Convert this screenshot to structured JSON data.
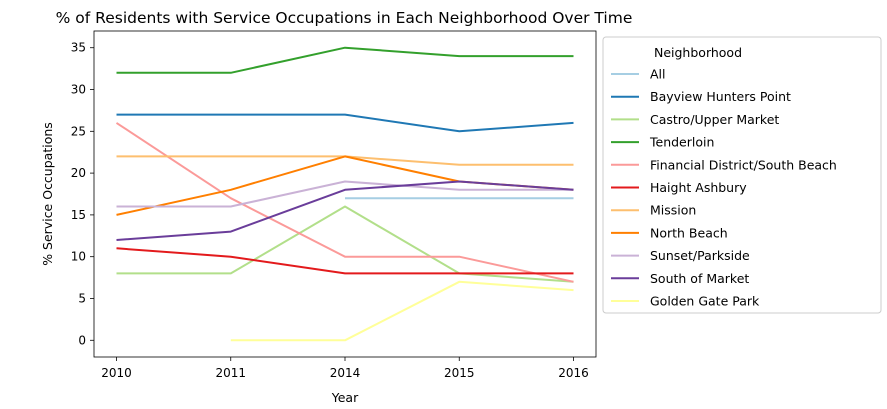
{
  "chart_data": {
    "type": "line",
    "title": "% of Residents with Service Occupations in Each Neighborhood Over Time",
    "xlabel": "Year",
    "ylabel": "% Service Occupations",
    "categories": [
      "2010",
      "2011",
      "2014",
      "2015",
      "2016"
    ],
    "yticks": [
      0,
      5,
      10,
      15,
      20,
      25,
      30,
      35
    ],
    "ylim": [
      -2,
      37
    ],
    "grid": false,
    "legend": {
      "title": "Neighborhood",
      "placement": "right-outside"
    },
    "series": [
      {
        "name": "All",
        "color": "#a6cee3",
        "values": [
          null,
          null,
          17,
          17,
          17
        ]
      },
      {
        "name": "Bayview Hunters Point",
        "color": "#1f78b4",
        "values": [
          27,
          27,
          27,
          25,
          26
        ]
      },
      {
        "name": "Castro/Upper Market",
        "color": "#b2df8a",
        "values": [
          8,
          8,
          16,
          8,
          7
        ]
      },
      {
        "name": "Tenderloin",
        "color": "#33a02c",
        "values": [
          32,
          32,
          35,
          34,
          34
        ]
      },
      {
        "name": "Financial District/South Beach",
        "color": "#fb9a99",
        "values": [
          26,
          17,
          10,
          10,
          7
        ]
      },
      {
        "name": "Haight Ashbury",
        "color": "#e31a1c",
        "values": [
          11,
          10,
          8,
          8,
          8
        ]
      },
      {
        "name": "Mission",
        "color": "#fdbf6f",
        "values": [
          22,
          22,
          22,
          21,
          21
        ]
      },
      {
        "name": "North Beach",
        "color": "#ff7f00",
        "values": [
          15,
          18,
          22,
          19,
          18
        ]
      },
      {
        "name": "Sunset/Parkside",
        "color": "#cab2d6",
        "values": [
          16,
          16,
          19,
          18,
          18
        ]
      },
      {
        "name": "South of Market",
        "color": "#6a3d9a",
        "values": [
          12,
          13,
          18,
          19,
          18
        ]
      },
      {
        "name": "Golden Gate Park",
        "color": "#ffff99",
        "values": [
          null,
          0,
          0,
          7,
          6
        ]
      }
    ]
  }
}
